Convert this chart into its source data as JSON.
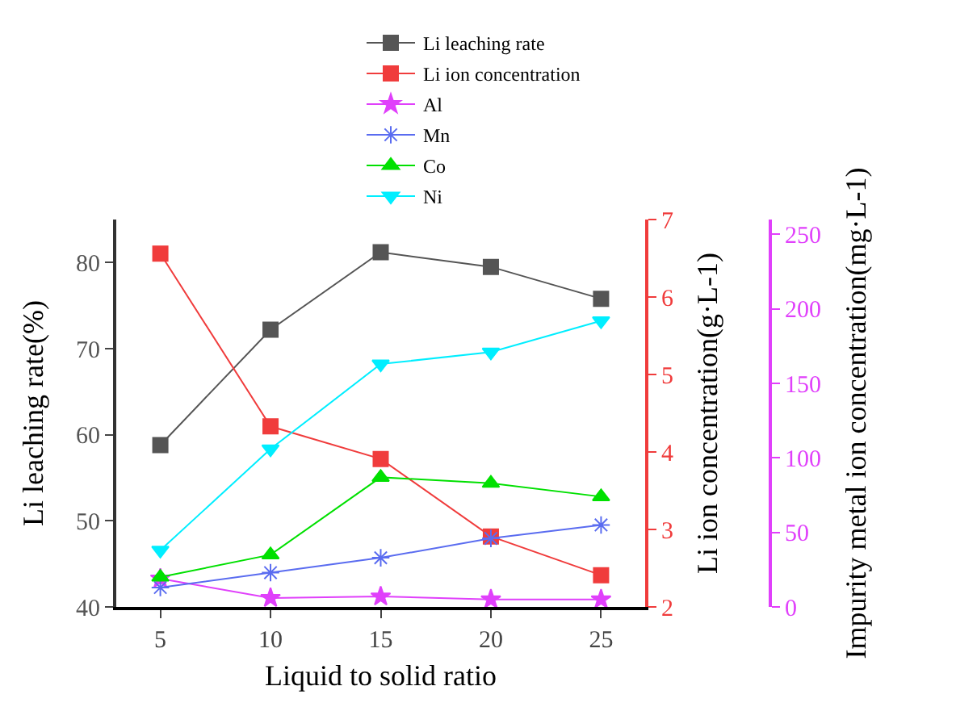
{
  "chart_data": {
    "type": "line",
    "xlabel": "Liquid to solid ratio",
    "ylabel": "Li leaching rate(%)",
    "y2label": "Li ion concentration(g·L-1)",
    "y3label": "Impurity metal ion concentration(mg·L-1)",
    "x": [
      5,
      10,
      15,
      20,
      25
    ],
    "xlim": [
      3,
      27
    ],
    "xticks": [
      5,
      10,
      15,
      20,
      25
    ],
    "ylim": [
      40,
      85
    ],
    "yticks": [
      40,
      50,
      60,
      70,
      80
    ],
    "y2lim": [
      2,
      7
    ],
    "y2ticks": [
      2,
      3,
      4,
      5,
      6,
      7
    ],
    "y3lim": [
      0,
      260
    ],
    "y3ticks": [
      0,
      50,
      100,
      150,
      200,
      250
    ],
    "legend": "top",
    "series": [
      {
        "name": "Li leaching rate",
        "color": "#555555",
        "marker": "square",
        "values": [
          58.8,
          72.2,
          81.2,
          79.5,
          75.8
        ]
      },
      {
        "name": "Li ion concentration",
        "color": "#f03c3c",
        "marker": "square",
        "axis": "y2",
        "values": [
          6.56,
          4.33,
          3.91,
          2.91,
          2.41
        ]
      },
      {
        "name": "Al",
        "color": "#e040fb",
        "marker": "star",
        "axis": "y3",
        "values": [
          19,
          6,
          7,
          5,
          5
        ]
      },
      {
        "name": "Mn",
        "color": "#5a6cf0",
        "marker": "cross",
        "axis": "y3",
        "values": [
          13,
          23,
          33,
          46,
          55
        ]
      },
      {
        "name": "Co",
        "color": "#00e000",
        "marker": "triangle",
        "axis": "y3",
        "values": [
          20,
          35,
          87,
          83,
          74
        ]
      },
      {
        "name": "Ni",
        "color": "#00eeff",
        "marker": "triangle-down",
        "axis": "y3",
        "values": [
          38,
          106,
          163,
          171,
          192
        ]
      }
    ]
  }
}
